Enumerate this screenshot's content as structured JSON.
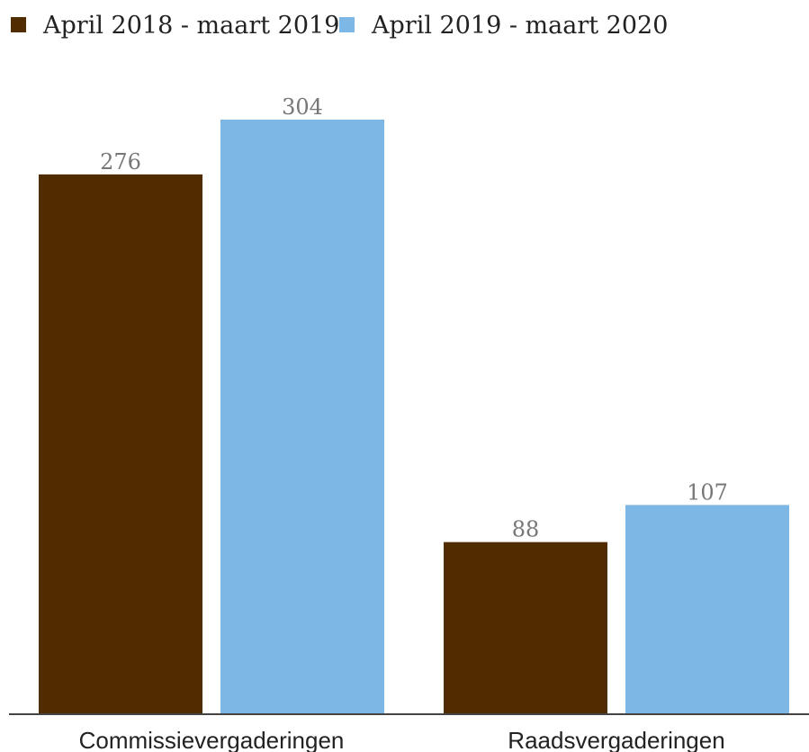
{
  "chart_data": {
    "type": "bar",
    "categories": [
      "Commissievergaderingen",
      "Raadsvergaderingen"
    ],
    "series": [
      {
        "name": "April 2018 - maart 2019",
        "values": [
          276,
          88
        ],
        "color": "#512c00"
      },
      {
        "name": "April 2019 - maart 2020",
        "values": [
          304,
          107
        ],
        "color": "#7cb7e6"
      }
    ],
    "ylim": [
      0,
      304
    ],
    "legend_position": "top-left",
    "grid": false,
    "axis_color": "#444444"
  }
}
